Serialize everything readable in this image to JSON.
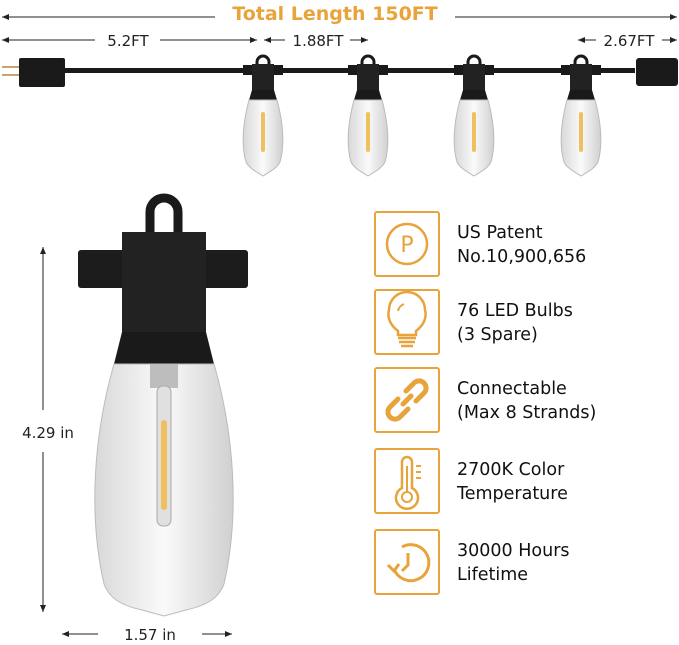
{
  "header": {
    "title": "Total Length 150FT"
  },
  "dimensions": {
    "lead": "5.2FT",
    "spacing": "1.88FT",
    "tail": "2.67FT",
    "bulb_height": "4.29 in",
    "bulb_width": "1.57 in"
  },
  "features": [
    {
      "icon": "patent-icon",
      "line1": "US Patent",
      "line2": "No.10,900,656"
    },
    {
      "icon": "lightbulb-icon",
      "line1": "76 LED Bulbs",
      "line2": "(3 Spare)"
    },
    {
      "icon": "link-icon",
      "line1": "Connectable",
      "line2": "(Max 8 Strands)"
    },
    {
      "icon": "thermometer-icon",
      "line1": "2700K Color",
      "line2": "Temperature"
    },
    {
      "icon": "clock-icon",
      "line1": "30000 Hours",
      "line2": "Lifetime"
    }
  ],
  "colors": {
    "accent": "#E8A33A",
    "text": "#111111",
    "cable": "#1a1a1a"
  }
}
